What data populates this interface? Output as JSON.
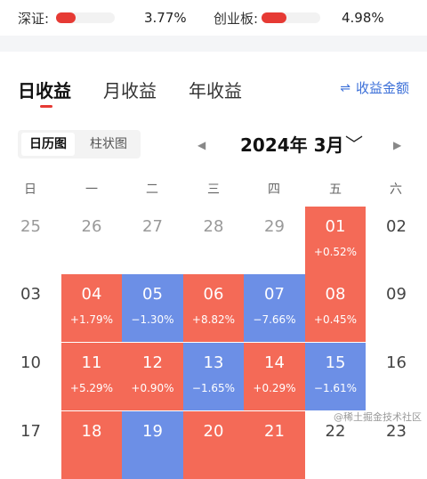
{
  "indices": [
    {
      "name": "深证:",
      "pct": "3.77%",
      "level": 0.3
    },
    {
      "name": "创业板:",
      "pct": "4.98%",
      "level": 0.4
    }
  ],
  "tabs": [
    {
      "label": "日收益",
      "active": true
    },
    {
      "label": "月收益",
      "active": false
    },
    {
      "label": "年收益",
      "active": false
    }
  ],
  "amount_link": {
    "icon": "⇌",
    "label": "收益金额"
  },
  "view_toggle": {
    "calendar": "日历图",
    "bar": "柱状图"
  },
  "month": {
    "label": "2024年 3月"
  },
  "weekdays": [
    "日",
    "一",
    "二",
    "三",
    "四",
    "五",
    "六"
  ],
  "days": [
    {
      "day": "25",
      "ret": "",
      "kind": "other"
    },
    {
      "day": "26",
      "ret": "",
      "kind": "other"
    },
    {
      "day": "27",
      "ret": "",
      "kind": "other"
    },
    {
      "day": "28",
      "ret": "",
      "kind": "other"
    },
    {
      "day": "29",
      "ret": "",
      "kind": "other"
    },
    {
      "day": "01",
      "ret": "+0.52%",
      "kind": "up"
    },
    {
      "day": "02",
      "ret": "",
      "kind": "plain"
    },
    {
      "day": "03",
      "ret": "",
      "kind": "plain"
    },
    {
      "day": "04",
      "ret": "+1.79%",
      "kind": "up"
    },
    {
      "day": "05",
      "ret": "−1.30%",
      "kind": "down"
    },
    {
      "day": "06",
      "ret": "+8.82%",
      "kind": "up"
    },
    {
      "day": "07",
      "ret": "−7.66%",
      "kind": "down"
    },
    {
      "day": "08",
      "ret": "+0.45%",
      "kind": "up"
    },
    {
      "day": "09",
      "ret": "",
      "kind": "plain"
    },
    {
      "day": "10",
      "ret": "",
      "kind": "plain"
    },
    {
      "day": "11",
      "ret": "+5.29%",
      "kind": "up"
    },
    {
      "day": "12",
      "ret": "+0.90%",
      "kind": "up"
    },
    {
      "day": "13",
      "ret": "−1.65%",
      "kind": "down"
    },
    {
      "day": "14",
      "ret": "+0.29%",
      "kind": "up"
    },
    {
      "day": "15",
      "ret": "−1.61%",
      "kind": "down"
    },
    {
      "day": "16",
      "ret": "",
      "kind": "plain"
    },
    {
      "day": "17",
      "ret": "",
      "kind": "plain"
    },
    {
      "day": "18",
      "ret": "",
      "kind": "up"
    },
    {
      "day": "19",
      "ret": "",
      "kind": "down"
    },
    {
      "day": "20",
      "ret": "",
      "kind": "up"
    },
    {
      "day": "21",
      "ret": "",
      "kind": "up"
    },
    {
      "day": "22",
      "ret": "",
      "kind": "plain"
    },
    {
      "day": "23",
      "ret": "",
      "kind": "plain"
    }
  ],
  "watermark": "@稀土掘金技术社区",
  "colors": {
    "up": "#f46a57",
    "down": "#6c8fe6",
    "accent": "#e63a34",
    "link": "#3b6fd8"
  }
}
